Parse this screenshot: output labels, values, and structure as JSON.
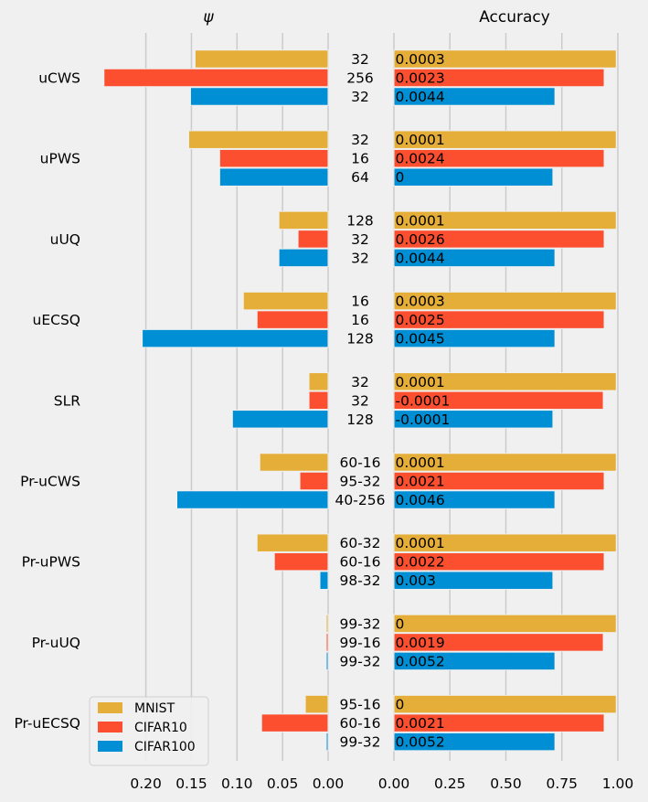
{
  "chart_data": {
    "type": "bar",
    "orientation": "horizontal",
    "grid": true,
    "legend_position": "lower-left",
    "categories": [
      "uCWS",
      "uPWS",
      "uUQ",
      "uECSQ",
      "SLR",
      "Pr-uCWS",
      "Pr-uPWS",
      "Pr-uUQ",
      "Pr-uECSQ"
    ],
    "series": [
      {
        "name": "MNIST",
        "color": "#e5ae38"
      },
      {
        "name": "CIFAR10",
        "color": "#fc4f30"
      },
      {
        "name": "CIFAR100",
        "color": "#008fd5"
      }
    ],
    "panels": [
      {
        "title": "ψ",
        "inverted_x": true,
        "xlim": [
          0.25,
          0.0
        ],
        "xticks": [
          "0.20",
          "0.15",
          "0.10",
          "0.05",
          "0.00"
        ],
        "xtick_values": [
          0.2,
          0.15,
          0.1,
          0.05,
          0.0
        ],
        "values": {
          "MNIST": [
            0.146,
            0.153,
            0.054,
            0.093,
            0.021,
            0.075,
            0.078,
            0.002,
            0.025
          ],
          "CIFAR10": [
            0.246,
            0.119,
            0.033,
            0.078,
            0.021,
            0.031,
            0.059,
            0.002,
            0.073
          ],
          "CIFAR100": [
            0.151,
            0.119,
            0.054,
            0.204,
            0.105,
            0.166,
            0.009,
            0.002,
            0.002
          ]
        }
      },
      {
        "title": "Accuracy",
        "xlim": [
          0.0,
          1.0
        ],
        "xticks": [
          "0.00",
          "0.25",
          "0.50",
          "0.75",
          "1.00"
        ],
        "xtick_values": [
          0.0,
          0.25,
          0.5,
          0.75,
          1.0
        ],
        "values": {
          "MNIST": [
            0.993,
            0.993,
            0.993,
            0.993,
            0.993,
            0.993,
            0.993,
            0.993,
            0.993
          ],
          "CIFAR10": [
            0.939,
            0.939,
            0.939,
            0.939,
            0.935,
            0.939,
            0.939,
            0.935,
            0.939
          ],
          "CIFAR100": [
            0.719,
            0.71,
            0.719,
            0.719,
            0.71,
            0.719,
            0.71,
            0.719,
            0.719
          ]
        },
        "bar_labels": {
          "MNIST": [
            "0.0003",
            "0.0001",
            "0.0001",
            "0.0003",
            "0.0001",
            "0.0001",
            "0.0001",
            "0",
            "0"
          ],
          "CIFAR10": [
            "0.0023",
            "0.0024",
            "0.0026",
            "0.0025",
            "-0.0001",
            "0.0021",
            "0.0022",
            "0.0019",
            "0.0021"
          ],
          "CIFAR100": [
            "0.0044",
            "0",
            "0.0044",
            "0.0045",
            "-0.0001",
            "0.0046",
            "0.003",
            "0.0052",
            "0.0052"
          ]
        }
      }
    ],
    "center_labels": {
      "MNIST": [
        "32",
        "32",
        "128",
        "16",
        "32",
        "60-16",
        "60-32",
        "99-32",
        "95-16"
      ],
      "CIFAR10": [
        "256",
        "16",
        "32",
        "16",
        "32",
        "95-32",
        "60-16",
        "99-16",
        "60-16"
      ],
      "CIFAR100": [
        "32",
        "64",
        "32",
        "128",
        "128",
        "40-256",
        "98-32",
        "99-32",
        "99-32"
      ]
    }
  }
}
